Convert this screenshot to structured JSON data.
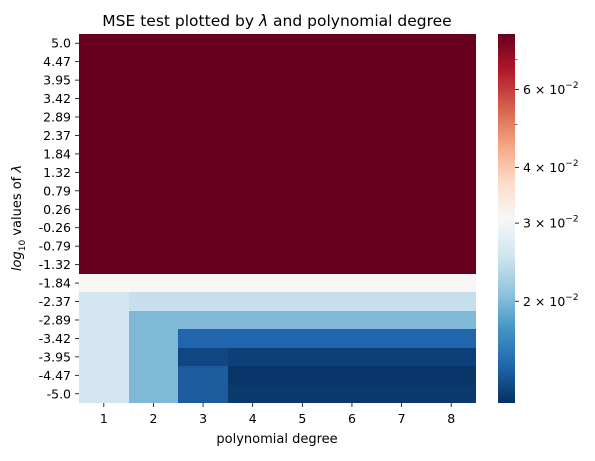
{
  "chart_data": {
    "type": "heatmap",
    "title": "MSE test plotted by λ and polynomial degree",
    "xlabel": "polynomial degree",
    "ylabel": "log10 values of λ",
    "x_categories": [
      "1",
      "2",
      "3",
      "4",
      "5",
      "6",
      "7",
      "8"
    ],
    "y_categories": [
      "5.0",
      "4.47",
      "3.95",
      "3.42",
      "2.89",
      "2.37",
      "1.84",
      "1.32",
      "0.79",
      "0.26",
      "-0.26",
      "-0.79",
      "-1.32",
      "-1.84",
      "-2.37",
      "-2.89",
      "-3.42",
      "-3.95",
      "-4.47",
      "-5.0"
    ],
    "values": [
      [
        0.08,
        0.08,
        0.08,
        0.08,
        0.08,
        0.08,
        0.08,
        0.08
      ],
      [
        0.08,
        0.08,
        0.08,
        0.08,
        0.08,
        0.08,
        0.08,
        0.08
      ],
      [
        0.08,
        0.08,
        0.08,
        0.08,
        0.08,
        0.08,
        0.08,
        0.08
      ],
      [
        0.08,
        0.08,
        0.08,
        0.08,
        0.08,
        0.08,
        0.08,
        0.08
      ],
      [
        0.08,
        0.08,
        0.08,
        0.08,
        0.08,
        0.08,
        0.08,
        0.08
      ],
      [
        0.08,
        0.08,
        0.08,
        0.08,
        0.08,
        0.08,
        0.08,
        0.08
      ],
      [
        0.08,
        0.08,
        0.08,
        0.08,
        0.08,
        0.08,
        0.08,
        0.08
      ],
      [
        0.08,
        0.08,
        0.08,
        0.08,
        0.08,
        0.08,
        0.08,
        0.08
      ],
      [
        0.08,
        0.08,
        0.08,
        0.08,
        0.08,
        0.08,
        0.08,
        0.08
      ],
      [
        0.08,
        0.08,
        0.08,
        0.08,
        0.08,
        0.08,
        0.08,
        0.08
      ],
      [
        0.08,
        0.08,
        0.08,
        0.08,
        0.08,
        0.08,
        0.08,
        0.08
      ],
      [
        0.08,
        0.08,
        0.08,
        0.08,
        0.08,
        0.08,
        0.08,
        0.08
      ],
      [
        0.08,
        0.08,
        0.08,
        0.08,
        0.08,
        0.08,
        0.08,
        0.08
      ],
      [
        0.031,
        0.031,
        0.031,
        0.031,
        0.031,
        0.031,
        0.031,
        0.031
      ],
      [
        0.0255,
        0.0245,
        0.0245,
        0.0245,
        0.0245,
        0.0245,
        0.0245,
        0.0245
      ],
      [
        0.0255,
        0.02,
        0.02,
        0.02,
        0.02,
        0.02,
        0.02,
        0.02
      ],
      [
        0.0255,
        0.02,
        0.0143,
        0.0143,
        0.0143,
        0.0143,
        0.0143,
        0.0143
      ],
      [
        0.0255,
        0.02,
        0.0128,
        0.0125,
        0.0125,
        0.0125,
        0.0125,
        0.0125
      ],
      [
        0.0255,
        0.02,
        0.0138,
        0.012,
        0.012,
        0.012,
        0.012,
        0.012
      ],
      [
        0.0255,
        0.02,
        0.0138,
        0.0122,
        0.0122,
        0.0122,
        0.0122,
        0.0122
      ]
    ],
    "colormap": "RdBu_r",
    "color_scale": "log",
    "vmin": 0.0118,
    "vmax": 0.08,
    "colorbar": {
      "major_ticks": [
        0.02,
        0.03,
        0.04,
        0.06
      ],
      "tick_labels": [
        {
          "mantissa": "2",
          "base": "10",
          "exp": "−2"
        },
        {
          "mantissa": "3",
          "base": "10",
          "exp": "−2"
        },
        {
          "mantissa": "4",
          "base": "10",
          "exp": "−2"
        },
        {
          "mantissa": "6",
          "base": "10",
          "exp": "−2"
        }
      ],
      "minor_ticks": [
        0.05,
        0.07
      ]
    },
    "grid": false,
    "legend": "colorbar-right"
  }
}
